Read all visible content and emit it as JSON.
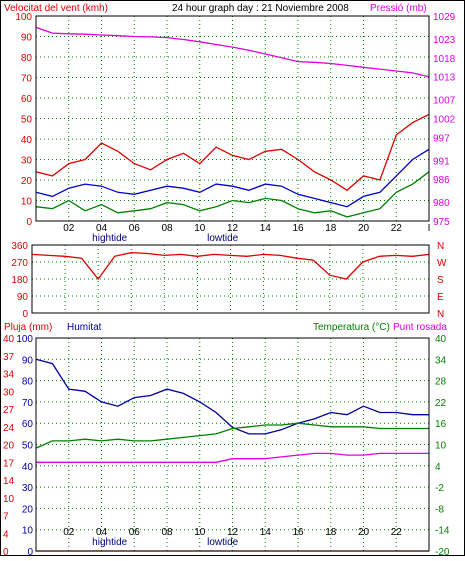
{
  "colors": {
    "background": "#ffffff",
    "panel_border": "#000000",
    "grid": "#008000",
    "wind_avg": "#0000cc",
    "wind_gust": "#e00000",
    "wind_dir": "#e00000",
    "pressure": "#e000e0",
    "humidity": "#0000a0",
    "temperature": "#008000",
    "dew_point": "#e000e0",
    "rain": "#e00000",
    "tide_text": "#000080"
  },
  "chart_data": [
    {
      "type": "line",
      "panel": "wind-pressure",
      "header_left": "Velocitat del vent (kmh)",
      "header_center": "24 hour graph day : 21 Noviembre 2008",
      "header_right": "Pressió (mb)",
      "x_ticks": [
        "02",
        "04",
        "06",
        "08",
        "10",
        "12",
        "14",
        "16",
        "18",
        "20",
        "22",
        "I"
      ],
      "tide_labels": [
        {
          "text": "hightide",
          "hour": 4.5
        },
        {
          "text": "lowtide",
          "hour": 11.4
        }
      ],
      "y_left": {
        "min": 0,
        "max": 100,
        "ticks": [
          100,
          90,
          80,
          70,
          60,
          50,
          40,
          30,
          20,
          10,
          0
        ]
      },
      "y_right": {
        "min": 975,
        "max": 1029,
        "ticks": [
          1029,
          1023,
          1018,
          1013,
          1007,
          1002,
          997,
          991,
          986,
          980,
          975
        ]
      },
      "x_hours": [
        0,
        1,
        2,
        3,
        4,
        5,
        6,
        7,
        8,
        9,
        10,
        11,
        12,
        13,
        14,
        15,
        16,
        17,
        18,
        19,
        20,
        21,
        22,
        23,
        24
      ],
      "series": [
        {
          "key": "gust",
          "axis": "left",
          "color": "wind_gust",
          "values": [
            24,
            22,
            28,
            30,
            38,
            34,
            28,
            25,
            30,
            33,
            28,
            36,
            32,
            30,
            34,
            35,
            30,
            24,
            20,
            15,
            22,
            20,
            42,
            48,
            52
          ]
        },
        {
          "key": "avg",
          "axis": "left",
          "color": "wind_avg",
          "values": [
            14,
            12,
            16,
            18,
            17,
            14,
            13,
            15,
            17,
            16,
            14,
            18,
            17,
            15,
            18,
            17,
            13,
            11,
            9,
            7,
            12,
            14,
            22,
            30,
            35
          ]
        },
        {
          "key": "low",
          "axis": "left",
          "color": "temperature",
          "values": [
            7,
            6,
            10,
            5,
            8,
            4,
            5,
            6,
            9,
            8,
            5,
            7,
            10,
            9,
            11,
            10,
            6,
            4,
            5,
            2,
            4,
            6,
            14,
            18,
            24
          ]
        },
        {
          "key": "pressure",
          "axis": "right",
          "color": "pressure",
          "values": [
            1026.0,
            1024.5,
            1024.3,
            1024.2,
            1024.0,
            1023.8,
            1023.6,
            1023.5,
            1023.3,
            1022.8,
            1022.2,
            1021.5,
            1020.8,
            1020.0,
            1019.0,
            1018.0,
            1017.0,
            1016.8,
            1016.5,
            1016.0,
            1015.5,
            1015.0,
            1014.5,
            1014.0,
            1013.0
          ]
        }
      ]
    },
    {
      "type": "line",
      "panel": "wind-direction",
      "y_left": {
        "min": 0,
        "max": 360,
        "ticks": [
          360,
          270,
          180,
          90,
          0
        ]
      },
      "y_right_labels": [
        "N",
        "W",
        "S",
        "E",
        "N"
      ],
      "x_hours": [
        0,
        1,
        2,
        3,
        4,
        5,
        6,
        7,
        8,
        9,
        10,
        11,
        12,
        13,
        14,
        15,
        16,
        17,
        18,
        19,
        20,
        21,
        22,
        23,
        24
      ],
      "values": [
        310,
        305,
        300,
        290,
        180,
        300,
        320,
        315,
        305,
        310,
        300,
        310,
        305,
        300,
        310,
        305,
        290,
        280,
        200,
        180,
        270,
        300,
        305,
        300,
        310
      ]
    },
    {
      "type": "line",
      "panel": "humidity-temperature",
      "label_rain": "Pluja (mm)",
      "label_humidity": "Humitat",
      "label_temperature": "Temperatura (°C)",
      "label_dew": "Punt rosada",
      "x_ticks": [
        "02",
        "04",
        "06",
        "08",
        "10",
        "12",
        "14",
        "16",
        "18",
        "20",
        "22",
        "I"
      ],
      "tide_labels": [
        {
          "text": "hightide",
          "hour": 4.5
        },
        {
          "text": "lowtide",
          "hour": 11.4
        }
      ],
      "rain_axis": {
        "min": 0,
        "max": 40,
        "ticks": [
          40,
          37,
          34,
          30,
          27,
          24,
          20,
          17,
          14,
          10,
          7,
          4,
          0
        ]
      },
      "humidity_axis": {
        "min": 0,
        "max": 100,
        "ticks": [
          100,
          90,
          80,
          70,
          60,
          50,
          40,
          30,
          20,
          10,
          0
        ]
      },
      "temperature_axis": {
        "min": -20,
        "max": 40,
        "ticks": [
          40,
          34,
          28,
          22,
          16,
          10,
          4,
          -2,
          -8,
          -14,
          -20
        ]
      },
      "x_hours": [
        0,
        1,
        2,
        3,
        4,
        5,
        6,
        7,
        8,
        9,
        10,
        11,
        12,
        13,
        14,
        15,
        16,
        17,
        18,
        19,
        20,
        21,
        22,
        23,
        24
      ],
      "series": [
        {
          "key": "humidity",
          "axis": "humidity",
          "color": "humidity",
          "values": [
            90,
            88,
            76,
            75,
            70,
            68,
            72,
            73,
            76,
            74,
            70,
            65,
            58,
            55,
            55,
            57,
            60,
            62,
            65,
            64,
            68,
            65,
            65,
            64,
            64
          ]
        },
        {
          "key": "temperature",
          "axis": "temperature",
          "color": "temperature",
          "values": [
            9,
            11,
            11,
            11.5,
            11,
            11.5,
            11,
            11,
            11.5,
            12,
            12.5,
            13,
            14.5,
            15,
            15.5,
            15.5,
            16,
            15.5,
            15,
            15,
            15,
            14.5,
            14.5,
            14.5,
            14.5
          ]
        },
        {
          "key": "dew",
          "axis": "temperature",
          "color": "dew_point",
          "values": [
            5,
            5,
            5,
            5,
            5,
            5,
            5,
            5,
            5,
            5,
            5,
            5,
            6,
            6,
            6,
            6.5,
            7,
            7.5,
            7.5,
            7,
            7,
            7.5,
            7.5,
            7.5,
            7.5
          ]
        },
        {
          "key": "rain",
          "axis": "rain",
          "color": "rain",
          "values": [
            0,
            0,
            0,
            0,
            0,
            0,
            0,
            0,
            0,
            0,
            0,
            0,
            0,
            0,
            0,
            0,
            0,
            0,
            0,
            0,
            0,
            0,
            0,
            0,
            0
          ]
        }
      ]
    }
  ]
}
